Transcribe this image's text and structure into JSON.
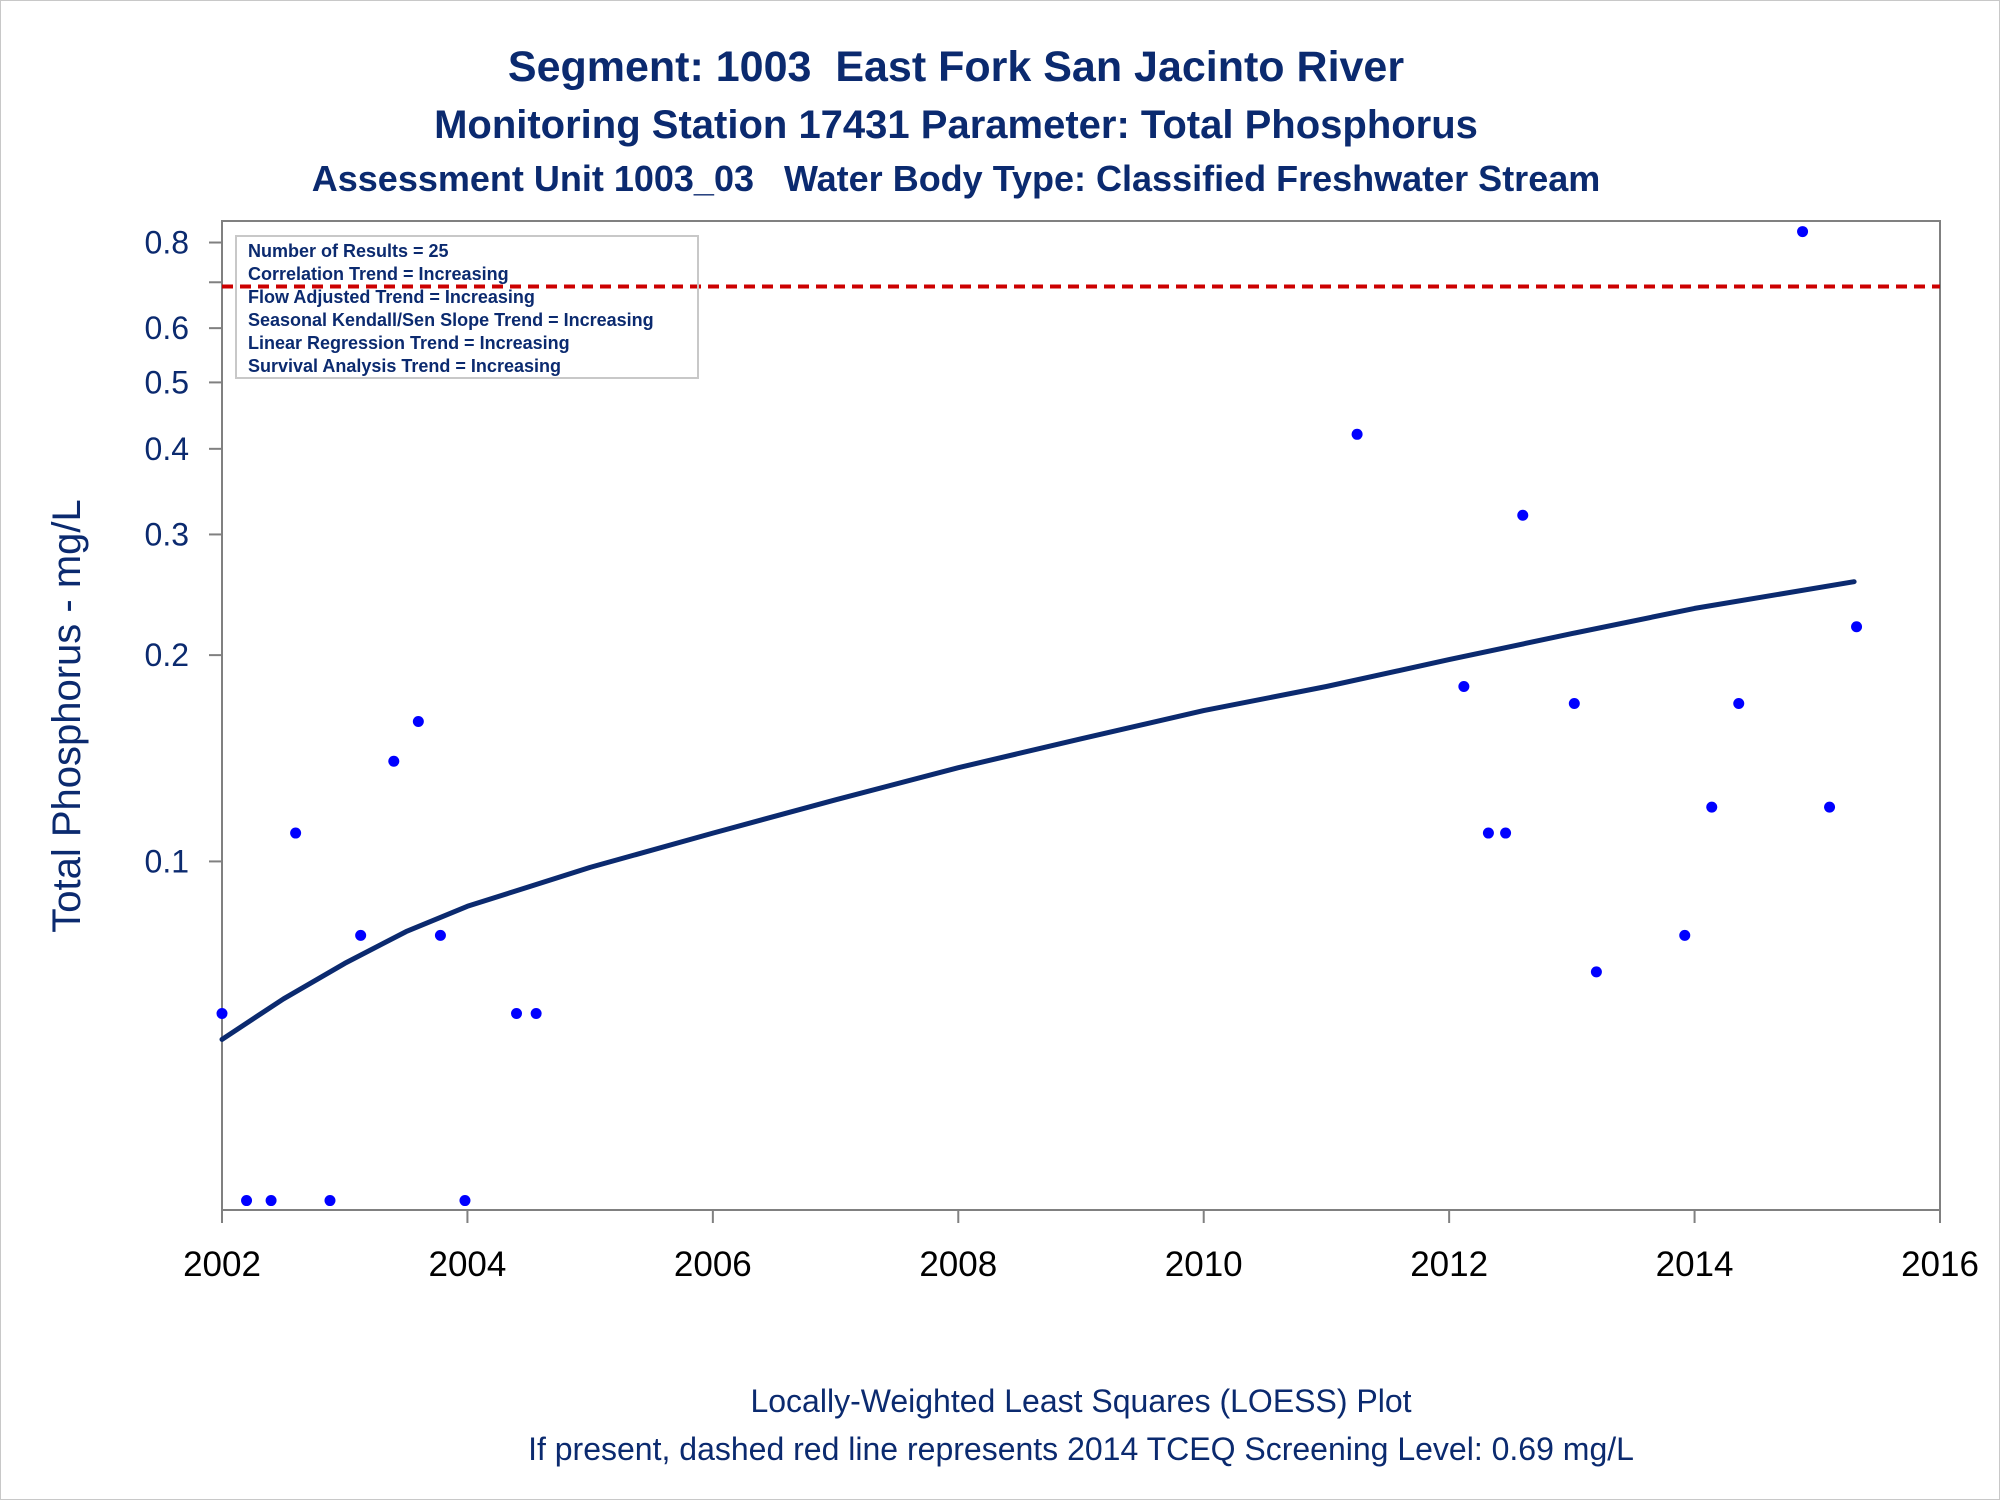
{
  "chart_data": {
    "type": "scatter",
    "title": "Segment: 1003  East Fork San Jacinto River",
    "subtitle": "Monitoring Station 17431 Parameter: Total Phosphorus",
    "subtitle2": "Assessment Unit 1003_03   Water Body Type: Classified Freshwater Stream",
    "xlabel": "",
    "ylabel": "Total Phosphorus - mg/L",
    "x_scale": "time (years)",
    "y_scale": "log",
    "xlim": [
      2002,
      2016
    ],
    "ylim": [
      0.031,
      0.86
    ],
    "x_ticks": [
      "2002",
      "2004",
      "2006",
      "2008",
      "2010",
      "2012",
      "2014",
      "2016"
    ],
    "y_ticks": [
      "0.1",
      "0.2",
      "0.3",
      "0.4",
      "0.5",
      "0.6",
      "0.8"
    ],
    "grid": false,
    "points": [
      {
        "x": 2002.0,
        "y": 0.06
      },
      {
        "x": 2002.2,
        "y": 0.032
      },
      {
        "x": 2002.4,
        "y": 0.032
      },
      {
        "x": 2002.6,
        "y": 0.11
      },
      {
        "x": 2002.88,
        "y": 0.032
      },
      {
        "x": 2003.13,
        "y": 0.078
      },
      {
        "x": 2003.4,
        "y": 0.14
      },
      {
        "x": 2003.6,
        "y": 0.16
      },
      {
        "x": 2003.78,
        "y": 0.078
      },
      {
        "x": 2003.98,
        "y": 0.032
      },
      {
        "x": 2004.4,
        "y": 0.06
      },
      {
        "x": 2004.56,
        "y": 0.06
      },
      {
        "x": 2011.25,
        "y": 0.42
      },
      {
        "x": 2012.12,
        "y": 0.18
      },
      {
        "x": 2012.32,
        "y": 0.11
      },
      {
        "x": 2012.46,
        "y": 0.11
      },
      {
        "x": 2012.6,
        "y": 0.32
      },
      {
        "x": 2013.02,
        "y": 0.17
      },
      {
        "x": 2013.2,
        "y": 0.069
      },
      {
        "x": 2013.92,
        "y": 0.078
      },
      {
        "x": 2014.14,
        "y": 0.12
      },
      {
        "x": 2014.36,
        "y": 0.17
      },
      {
        "x": 2014.88,
        "y": 0.83
      },
      {
        "x": 2015.1,
        "y": 0.12
      },
      {
        "x": 2015.32,
        "y": 0.22
      }
    ],
    "loess_curve": [
      {
        "x": 2002.0,
        "y": 0.055
      },
      {
        "x": 2002.5,
        "y": 0.063
      },
      {
        "x": 2003.0,
        "y": 0.071
      },
      {
        "x": 2003.5,
        "y": 0.079
      },
      {
        "x": 2004.0,
        "y": 0.086
      },
      {
        "x": 2005.0,
        "y": 0.098
      },
      {
        "x": 2006.0,
        "y": 0.11
      },
      {
        "x": 2007.0,
        "y": 0.123
      },
      {
        "x": 2008.0,
        "y": 0.137
      },
      {
        "x": 2009.0,
        "y": 0.151
      },
      {
        "x": 2010.0,
        "y": 0.166
      },
      {
        "x": 2011.0,
        "y": 0.18
      },
      {
        "x": 2012.0,
        "y": 0.197
      },
      {
        "x": 2013.0,
        "y": 0.215
      },
      {
        "x": 2014.0,
        "y": 0.234
      },
      {
        "x": 2015.3,
        "y": 0.256
      }
    ],
    "screening_level": 0.69,
    "colors": {
      "points": "#0000ff",
      "loess": "#0b2a6f",
      "screening_line": "#cc0000",
      "text": "#0b2a6f",
      "axis": "#808080"
    },
    "stats_box": [
      "Number of Results = 25",
      "Correlation Trend = Increasing",
      "Flow Adjusted Trend = Increasing",
      "Seasonal Kendall/Sen Slope Trend = Increasing",
      "Linear Regression Trend = Increasing",
      "Survival Analysis Trend = Increasing"
    ],
    "footnotes": [
      "Locally-Weighted Least Squares (LOESS) Plot",
      "If present, dashed red line represents 2014 TCEQ Screening Level: 0.69 mg/L"
    ]
  }
}
